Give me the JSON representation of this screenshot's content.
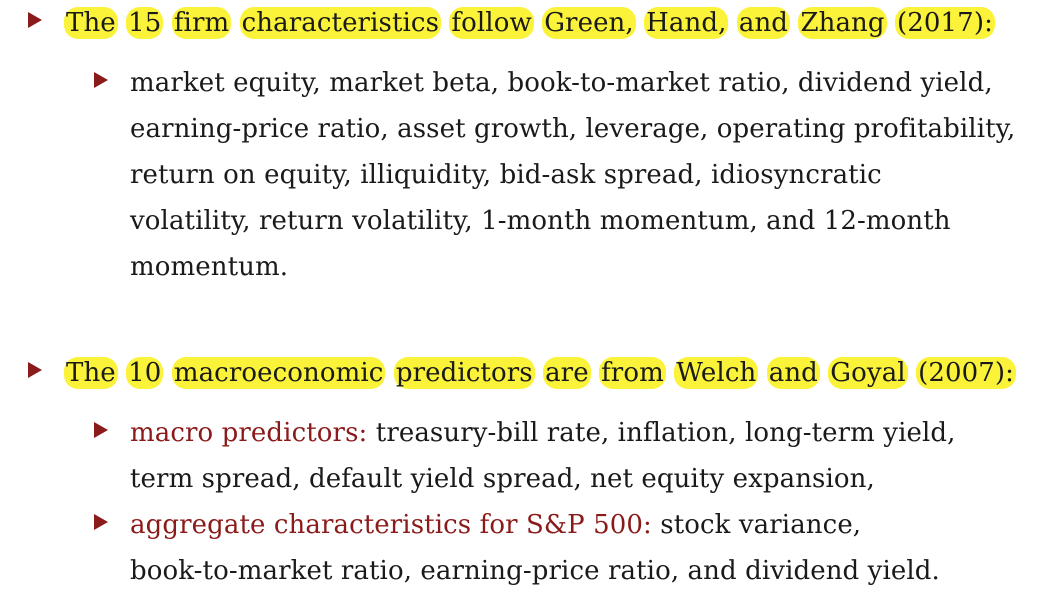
{
  "section1": {
    "heading_words": [
      "The",
      "15",
      "firm",
      "characteristics",
      "follow",
      "Green,",
      "Hand,",
      "and",
      "Zhang",
      "(2017):"
    ],
    "sub_lines": [
      "market equity, market beta, book-to-market ratio, dividend yield,",
      "earning-price ratio, asset growth, leverage, operating profitability,",
      "return on equity, illiquidity, bid-ask spread, idiosyncratic",
      "volatility, return volatility, 1-month momentum, and 12-month",
      "momentum."
    ]
  },
  "section2": {
    "heading_words": [
      "The",
      "10",
      "macroeconomic",
      "predictors",
      "are",
      "from",
      "Welch",
      "and",
      "Goyal",
      "(2007):"
    ],
    "item1": {
      "label": "macro predictors:",
      "line1": "treasury-bill rate, inflation, long-term yield,",
      "line2": "term spread, default yield spread, net equity expansion,"
    },
    "item2": {
      "label": "aggregate characteristics for S&P 500:",
      "line1": "stock variance,",
      "line2": "book-to-market ratio, earning-price ratio, and dividend yield."
    }
  },
  "colors": {
    "bullet": "#8b1a1a",
    "highlight": "#fbf23a",
    "label": "#8b1a1a"
  }
}
